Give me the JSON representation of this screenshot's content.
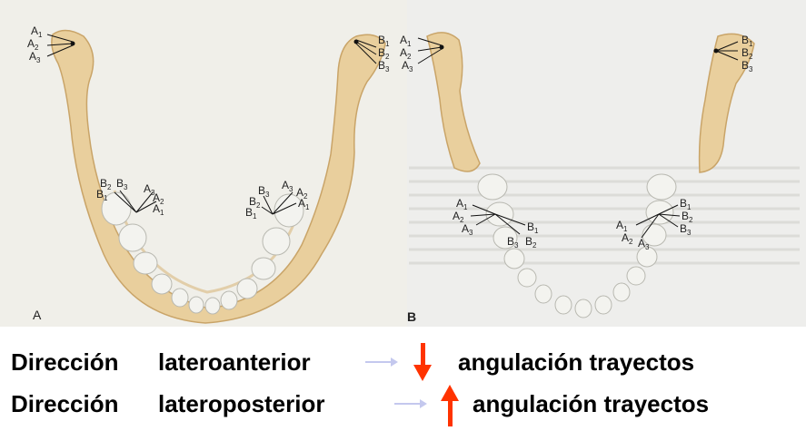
{
  "figure": {
    "panel_a_letter": "A",
    "panel_b_letter": "B",
    "labels": {
      "A1": "A",
      "A2": "A",
      "A3": "A",
      "B1": "B",
      "B2": "B",
      "B3": "B",
      "s1": "1",
      "s2": "2",
      "s3": "3"
    },
    "colors": {
      "bone": "#e9cf9d",
      "bone_dark": "#c9a468",
      "paper_left": "#f0efe9",
      "paper_right": "#eeeeec",
      "tooth": "#f3f3ef",
      "tooth_edge": "#b8b8b0",
      "red_arrow": "#ff3300",
      "blue_arrow": "#c4c8ee"
    }
  },
  "captions": [
    {
      "direction_word": "Dirección",
      "direction_type": "lateroanterior",
      "result": "angulación trayectos",
      "arrow": "down"
    },
    {
      "direction_word": "Dirección",
      "direction_type": "lateroposterior",
      "result": "angulación trayectos",
      "arrow": "up"
    }
  ]
}
